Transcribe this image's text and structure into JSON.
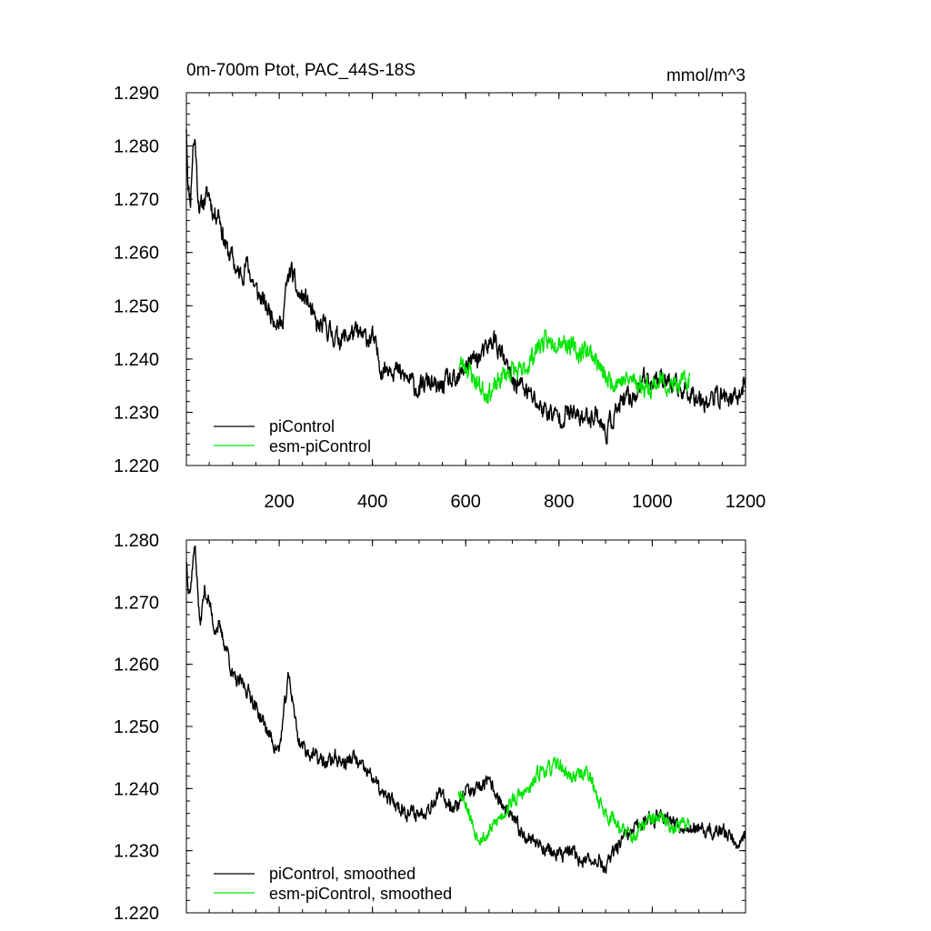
{
  "chart_data": [
    {
      "type": "line",
      "title": "0m-700m Ptot, PAC_44S-18S",
      "units": "mmol/m^3",
      "xlim": [
        1,
        1200
      ],
      "ylim": [
        1.22,
        1.29
      ],
      "x_ticks": [
        200,
        400,
        600,
        800,
        1000,
        1200
      ],
      "x_tick_labels": [
        "200",
        "400",
        "600",
        "800",
        "1000",
        "1200"
      ],
      "y_ticks": [
        1.22,
        1.23,
        1.24,
        1.25,
        1.26,
        1.27,
        1.28,
        1.29
      ],
      "y_tick_labels": [
        "1.220",
        "1.230",
        "1.240",
        "1.250",
        "1.260",
        "1.270",
        "1.280",
        "1.290"
      ],
      "legend_position": "bottom-left",
      "series": [
        {
          "name": "piControl",
          "color": "#000000",
          "x_start": 1,
          "x_end": 1200,
          "anchors": [
            [
              1,
              1.284
            ],
            [
              5,
              1.272
            ],
            [
              10,
              1.27
            ],
            [
              15,
              1.28
            ],
            [
              20,
              1.281
            ],
            [
              25,
              1.272
            ],
            [
              30,
              1.268
            ],
            [
              40,
              1.27
            ],
            [
              50,
              1.271
            ],
            [
              60,
              1.267
            ],
            [
              70,
              1.268
            ],
            [
              80,
              1.263
            ],
            [
              90,
              1.26
            ],
            [
              100,
              1.259
            ],
            [
              110,
              1.256
            ],
            [
              120,
              1.256
            ],
            [
              130,
              1.258
            ],
            [
              150,
              1.253
            ],
            [
              170,
              1.25
            ],
            [
              190,
              1.248
            ],
            [
              205,
              1.246
            ],
            [
              215,
              1.253
            ],
            [
              225,
              1.257
            ],
            [
              240,
              1.252
            ],
            [
              260,
              1.251
            ],
            [
              280,
              1.246
            ],
            [
              300,
              1.246
            ],
            [
              320,
              1.244
            ],
            [
              340,
              1.244
            ],
            [
              360,
              1.245
            ],
            [
              380,
              1.244
            ],
            [
              400,
              1.244
            ],
            [
              420,
              1.238
            ],
            [
              440,
              1.239
            ],
            [
              460,
              1.237
            ],
            [
              480,
              1.236
            ],
            [
              500,
              1.234
            ],
            [
              520,
              1.236
            ],
            [
              540,
              1.234
            ],
            [
              560,
              1.236
            ],
            [
              580,
              1.235
            ],
            [
              600,
              1.239
            ],
            [
              620,
              1.24
            ],
            [
              640,
              1.241
            ],
            [
              660,
              1.244
            ],
            [
              680,
              1.24
            ],
            [
              700,
              1.236
            ],
            [
              720,
              1.235
            ],
            [
              740,
              1.233
            ],
            [
              760,
              1.231
            ],
            [
              780,
              1.23
            ],
            [
              800,
              1.229
            ],
            [
              820,
              1.23
            ],
            [
              840,
              1.229
            ],
            [
              860,
              1.229
            ],
            [
              880,
              1.23
            ],
            [
              900,
              1.226
            ],
            [
              920,
              1.23
            ],
            [
              940,
              1.232
            ],
            [
              960,
              1.233
            ],
            [
              980,
              1.236
            ],
            [
              1000,
              1.236
            ],
            [
              1020,
              1.237
            ],
            [
              1040,
              1.235
            ],
            [
              1060,
              1.234
            ],
            [
              1080,
              1.234
            ],
            [
              1100,
              1.233
            ],
            [
              1120,
              1.232
            ],
            [
              1140,
              1.233
            ],
            [
              1160,
              1.233
            ],
            [
              1180,
              1.232
            ],
            [
              1200,
              1.236
            ]
          ],
          "noise": 0.0035,
          "seed": 11
        },
        {
          "name": "esm-piControl",
          "color": "#00e400",
          "x_start": 585,
          "x_end": 1080,
          "anchors": [
            [
              585,
              1.239
            ],
            [
              600,
              1.239
            ],
            [
              620,
              1.236
            ],
            [
              640,
              1.234
            ],
            [
              660,
              1.234
            ],
            [
              680,
              1.237
            ],
            [
              700,
              1.238
            ],
            [
              720,
              1.237
            ],
            [
              740,
              1.24
            ],
            [
              760,
              1.243
            ],
            [
              780,
              1.243
            ],
            [
              800,
              1.244
            ],
            [
              820,
              1.243
            ],
            [
              840,
              1.241
            ],
            [
              860,
              1.242
            ],
            [
              880,
              1.24
            ],
            [
              900,
              1.236
            ],
            [
              920,
              1.236
            ],
            [
              940,
              1.236
            ],
            [
              960,
              1.236
            ],
            [
              980,
              1.235
            ],
            [
              1000,
              1.235
            ],
            [
              1020,
              1.236
            ],
            [
              1040,
              1.235
            ],
            [
              1060,
              1.235
            ],
            [
              1080,
              1.236
            ]
          ],
          "noise": 0.0035,
          "seed": 23
        }
      ]
    },
    {
      "type": "line",
      "xlim": [
        1,
        1200
      ],
      "ylim": [
        1.22,
        1.28
      ],
      "x_ticks": [
        200,
        400,
        600,
        800,
        1000,
        1200
      ],
      "y_ticks": [
        1.22,
        1.23,
        1.24,
        1.25,
        1.26,
        1.27,
        1.28
      ],
      "y_tick_labels": [
        "1.220",
        "1.230",
        "1.240",
        "1.250",
        "1.260",
        "1.270",
        "1.280"
      ],
      "legend_position": "bottom-left",
      "series": [
        {
          "name": "piControl, smoothed",
          "color": "#000000",
          "x_start": 1,
          "x_end": 1200,
          "anchors": [
            [
              1,
              1.277
            ],
            [
              5,
              1.273
            ],
            [
              10,
              1.272
            ],
            [
              15,
              1.277
            ],
            [
              20,
              1.279
            ],
            [
              30,
              1.266
            ],
            [
              40,
              1.272
            ],
            [
              50,
              1.27
            ],
            [
              60,
              1.266
            ],
            [
              70,
              1.266
            ],
            [
              80,
              1.264
            ],
            [
              90,
              1.262
            ],
            [
              100,
              1.258
            ],
            [
              110,
              1.257
            ],
            [
              120,
              1.257
            ],
            [
              130,
              1.256
            ],
            [
              140,
              1.255
            ],
            [
              150,
              1.253
            ],
            [
              170,
              1.25
            ],
            [
              190,
              1.247
            ],
            [
              200,
              1.246
            ],
            [
              210,
              1.252
            ],
            [
              220,
              1.258
            ],
            [
              230,
              1.254
            ],
            [
              240,
              1.248
            ],
            [
              260,
              1.246
            ],
            [
              280,
              1.245
            ],
            [
              300,
              1.244
            ],
            [
              320,
              1.245
            ],
            [
              340,
              1.244
            ],
            [
              360,
              1.245
            ],
            [
              380,
              1.243
            ],
            [
              400,
              1.242
            ],
            [
              420,
              1.239
            ],
            [
              440,
              1.238
            ],
            [
              460,
              1.237
            ],
            [
              480,
              1.236
            ],
            [
              500,
              1.236
            ],
            [
              520,
              1.237
            ],
            [
              540,
              1.239
            ],
            [
              560,
              1.238
            ],
            [
              580,
              1.237
            ],
            [
              600,
              1.24
            ],
            [
              620,
              1.239
            ],
            [
              640,
              1.241
            ],
            [
              660,
              1.24
            ],
            [
              680,
              1.237
            ],
            [
              700,
              1.235
            ],
            [
              720,
              1.233
            ],
            [
              740,
              1.232
            ],
            [
              760,
              1.231
            ],
            [
              780,
              1.23
            ],
            [
              800,
              1.229
            ],
            [
              820,
              1.23
            ],
            [
              840,
              1.229
            ],
            [
              860,
              1.228
            ],
            [
              880,
              1.229
            ],
            [
              900,
              1.227
            ],
            [
              920,
              1.23
            ],
            [
              940,
              1.232
            ],
            [
              960,
              1.233
            ],
            [
              980,
              1.235
            ],
            [
              1000,
              1.235
            ],
            [
              1020,
              1.236
            ],
            [
              1040,
              1.235
            ],
            [
              1060,
              1.234
            ],
            [
              1080,
              1.234
            ],
            [
              1100,
              1.233
            ],
            [
              1120,
              1.233
            ],
            [
              1140,
              1.233
            ],
            [
              1160,
              1.233
            ],
            [
              1180,
              1.231
            ],
            [
              1200,
              1.233
            ]
          ],
          "noise": 0.0022,
          "seed": 37
        },
        {
          "name": "esm-piControl, smoothed",
          "color": "#00e400",
          "x_start": 585,
          "x_end": 1080,
          "anchors": [
            [
              585,
              1.24
            ],
            [
              600,
              1.238
            ],
            [
              620,
              1.233
            ],
            [
              640,
              1.232
            ],
            [
              660,
              1.234
            ],
            [
              680,
              1.236
            ],
            [
              700,
              1.238
            ],
            [
              720,
              1.239
            ],
            [
              740,
              1.24
            ],
            [
              760,
              1.243
            ],
            [
              780,
              1.243
            ],
            [
              800,
              1.244
            ],
            [
              820,
              1.242
            ],
            [
              840,
              1.242
            ],
            [
              860,
              1.243
            ],
            [
              880,
              1.239
            ],
            [
              900,
              1.236
            ],
            [
              920,
              1.235
            ],
            [
              940,
              1.233
            ],
            [
              960,
              1.232
            ],
            [
              980,
              1.234
            ],
            [
              1000,
              1.235
            ],
            [
              1020,
              1.235
            ],
            [
              1040,
              1.234
            ],
            [
              1060,
              1.234
            ],
            [
              1080,
              1.235
            ]
          ],
          "noise": 0.0022,
          "seed": 53
        }
      ]
    }
  ]
}
